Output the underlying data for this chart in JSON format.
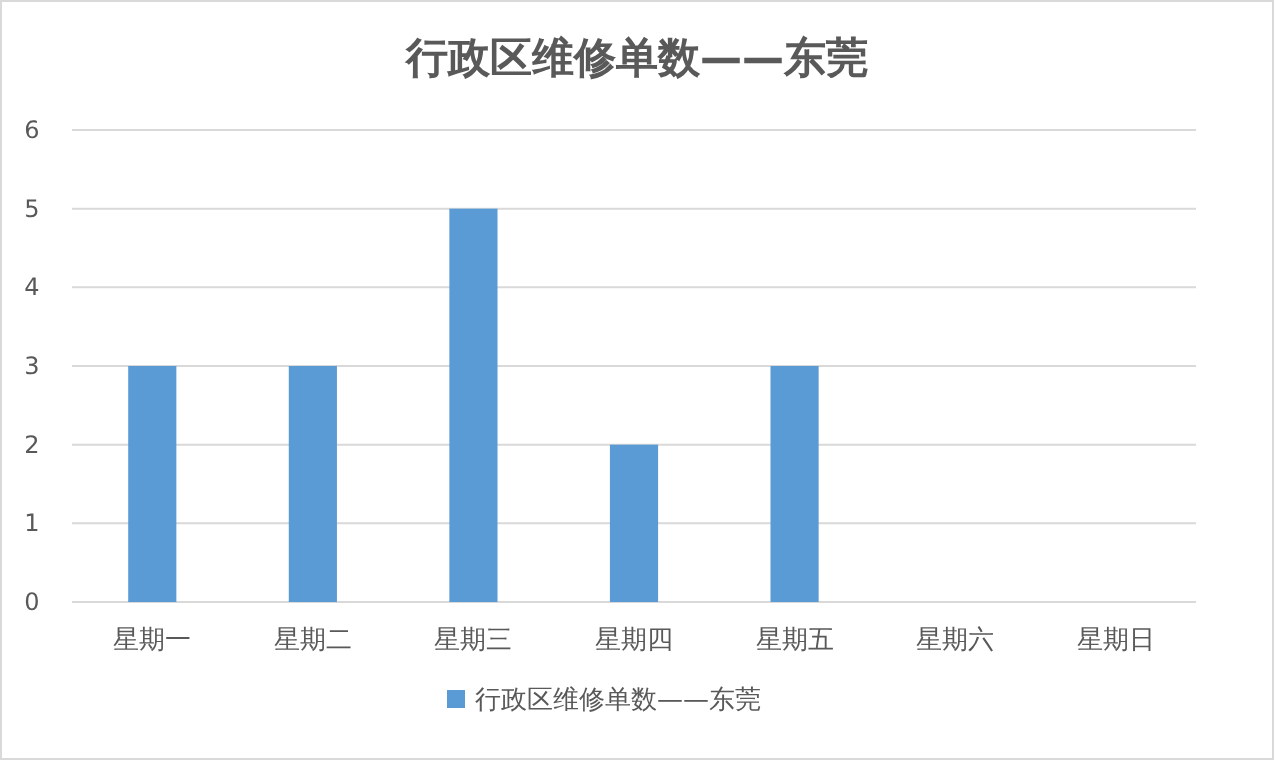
{
  "chart_data": {
    "type": "bar",
    "title": "行政区维修单数——东莞",
    "categories": [
      "星期一",
      "星期二",
      "星期三",
      "星期四",
      "星期五",
      "星期六",
      "星期日"
    ],
    "series": [
      {
        "name": "行政区维修单数——东莞",
        "color": "#5b9bd5",
        "values": [
          3,
          3,
          5,
          2,
          3,
          0,
          0
        ]
      }
    ],
    "ylim": [
      0,
      6
    ],
    "yticks": [
      0,
      1,
      2,
      3,
      4,
      5,
      6
    ],
    "grid": "y",
    "legend": "bottom"
  }
}
